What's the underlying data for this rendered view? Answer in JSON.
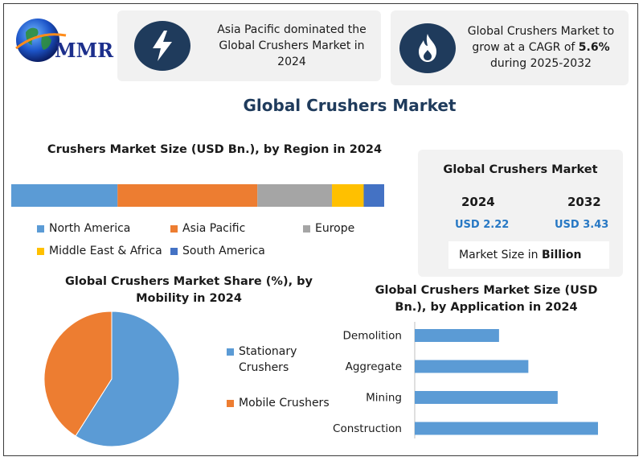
{
  "brand": {
    "logo_text": "MMR"
  },
  "highlights": [
    {
      "text": "Asia Pacific dominated the Global Crushers Market in 2024",
      "icon": "lightning-icon"
    },
    {
      "text_pre": "Global Crushers Market to grow at a CAGR of ",
      "text_bold": "5.6%",
      "text_post": " during 2025-2032",
      "icon": "flame-icon"
    }
  ],
  "main_title": "Global Crushers Market",
  "colors": {
    "north_america": "#5b9bd5",
    "asia_pacific": "#ed7d31",
    "europe": "#a5a5a5",
    "mea": "#ffc000",
    "south_america": "#4472c4",
    "accent": "#2778c4",
    "navy": "#1f3b5c"
  },
  "chart_data": [
    {
      "type": "bar",
      "orientation": "horizontal-stacked",
      "title": "Crushers Market Size (USD Bn.), by Region in 2024",
      "series": [
        {
          "name": "North America",
          "values": [
            28.5
          ]
        },
        {
          "name": "Asia Pacific",
          "values": [
            37.5
          ]
        },
        {
          "name": "Europe",
          "values": [
            20.0
          ]
        },
        {
          "name": "Middle East & Africa",
          "values": [
            8.5
          ]
        },
        {
          "name": "South America",
          "values": [
            5.5
          ]
        }
      ],
      "legend": "bottom"
    },
    {
      "type": "pie",
      "title": "Global Crushers Market Share (%), by Mobility in 2024",
      "categories": [
        "Stationary Crushers",
        "Mobile Crushers"
      ],
      "values": [
        59,
        41
      ],
      "legend": "right"
    },
    {
      "type": "bar",
      "orientation": "horizontal",
      "title": "Global Crushers Market Size (USD Bn.), by Application in 2024",
      "categories": [
        "Demolition",
        "Aggregate",
        "Mining",
        "Construction"
      ],
      "values": [
        0.46,
        0.62,
        0.78,
        1.0
      ],
      "xlim": [
        0,
        1
      ]
    }
  ],
  "summary_card": {
    "title": "Global Crushers Market",
    "years": [
      "2024",
      "2032"
    ],
    "values": [
      "USD 2.22",
      "USD 3.43"
    ],
    "footer_pre": "Market Size in ",
    "footer_bold": "Billion"
  }
}
